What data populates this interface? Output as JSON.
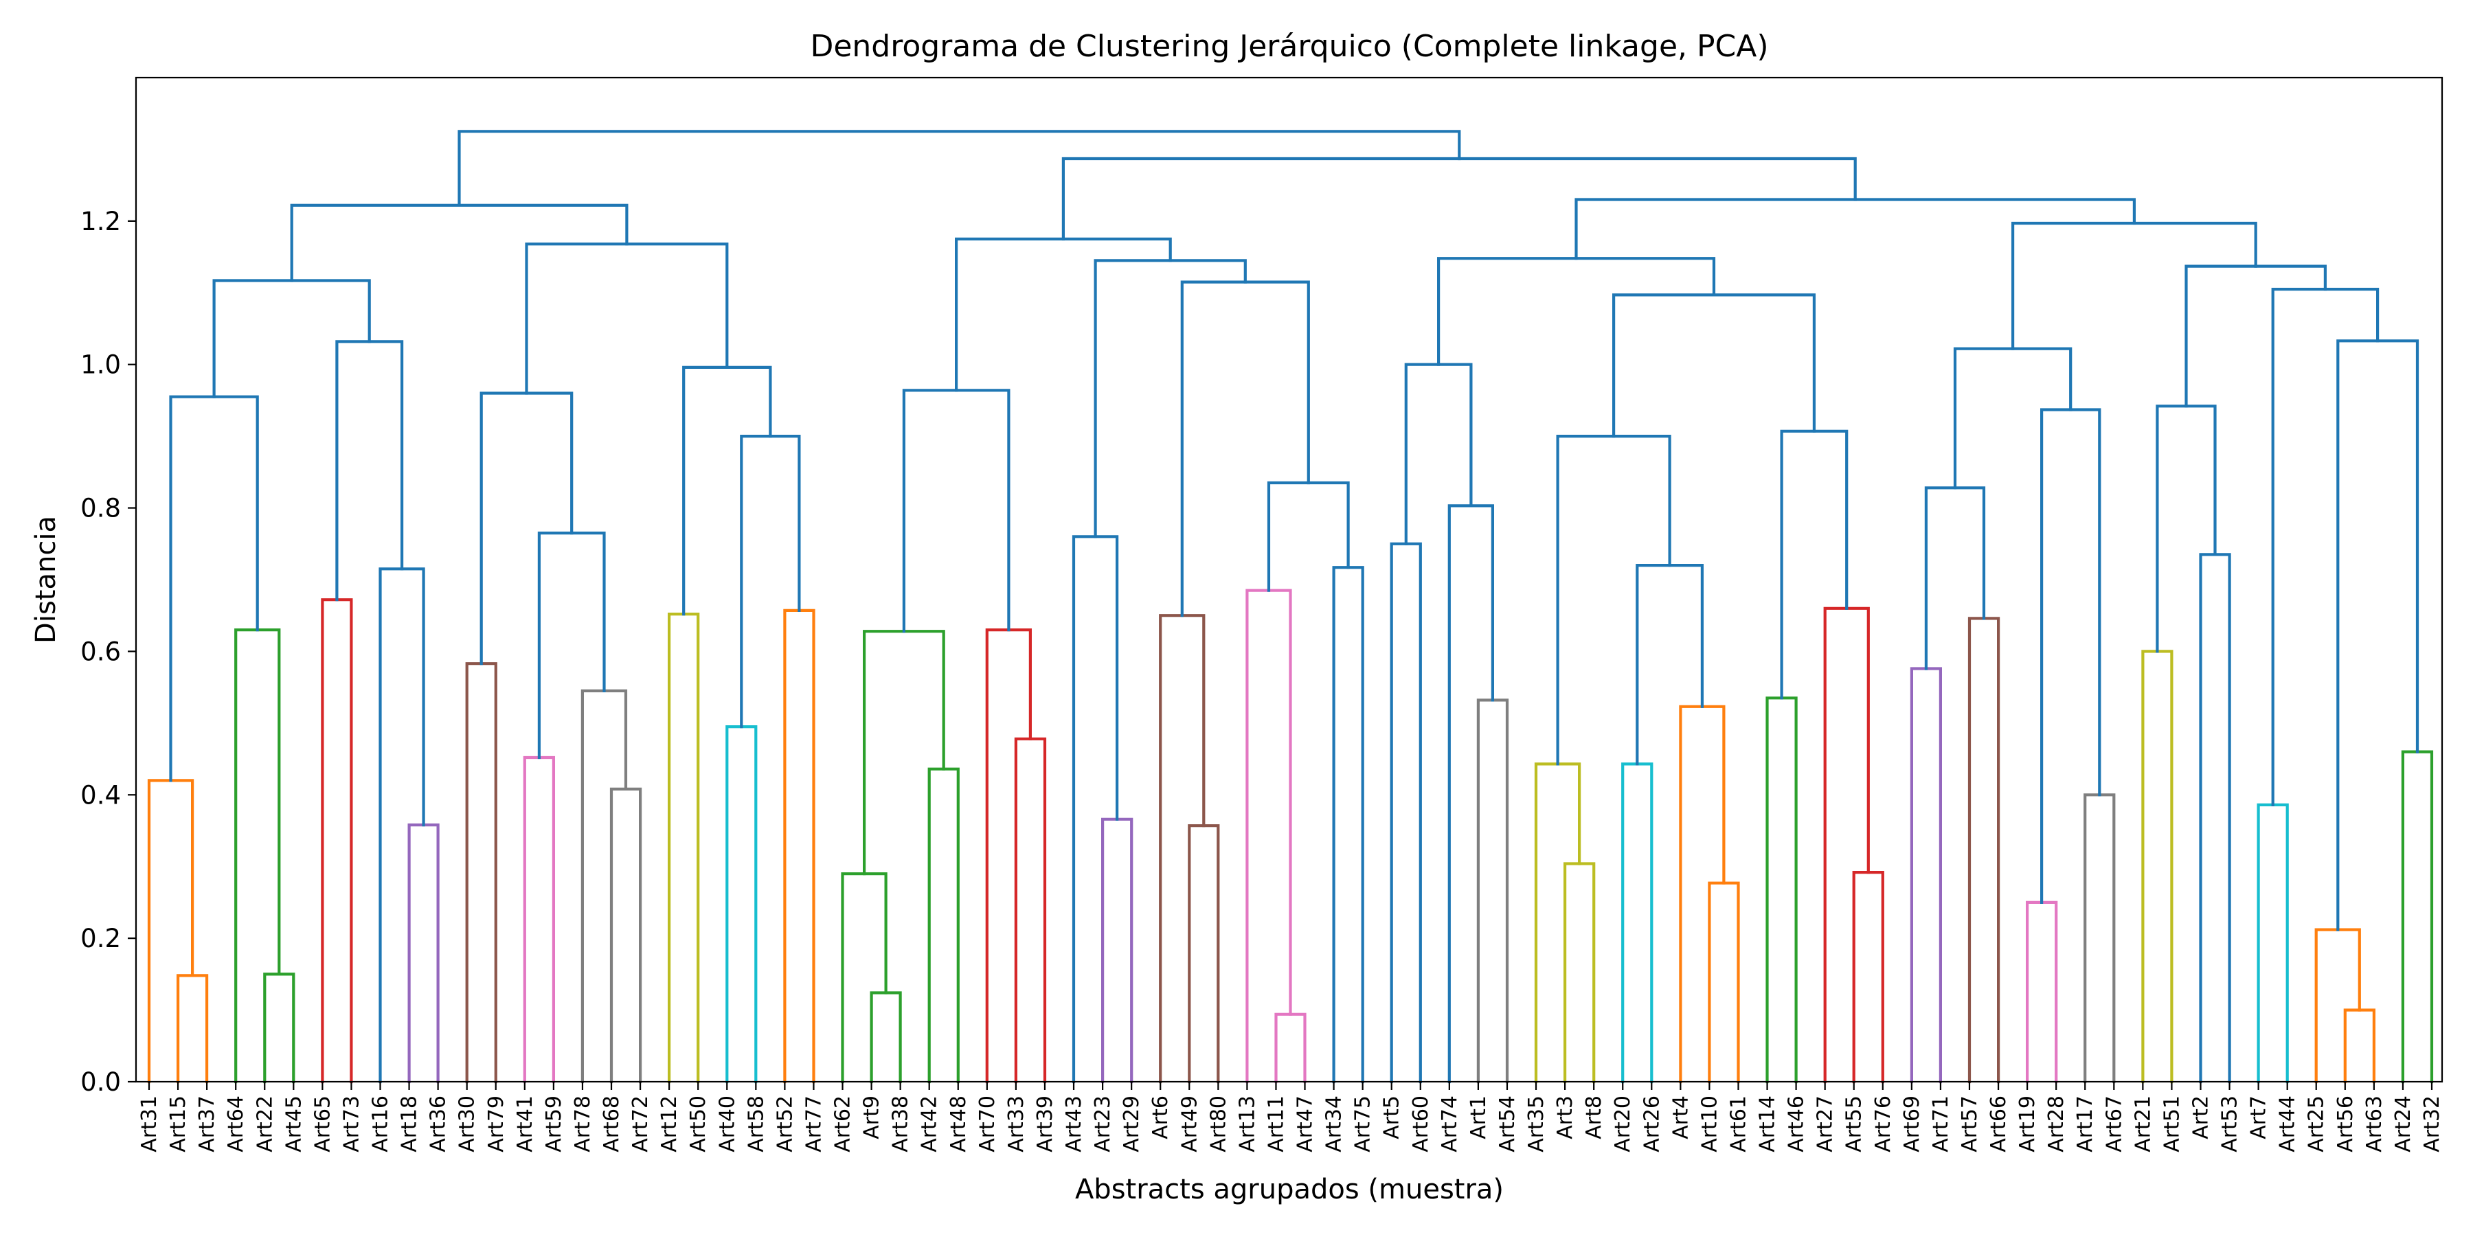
{
  "chart_data": {
    "type": "dendrogram",
    "title": "Dendrograma de Clustering Jerárquico (Complete linkage, PCA)",
    "xlabel": "Abstracts agrupados (muestra)",
    "ylabel": "Distancia",
    "ylim": [
      0.0,
      1.4
    ],
    "yticks": [
      0.0,
      0.2,
      0.4,
      0.6,
      0.8,
      1.0,
      1.2
    ],
    "ytick_labels": [
      "0.0",
      "0.2",
      "0.4",
      "0.6",
      "0.8",
      "1.0",
      "1.2"
    ],
    "grid": false,
    "leaves": [
      "Art31",
      "Art15",
      "Art37",
      "Art64",
      "Art22",
      "Art45",
      "Art65",
      "Art73",
      "Art16",
      "Art18",
      "Art36",
      "Art30",
      "Art79",
      "Art41",
      "Art59",
      "Art78",
      "Art68",
      "Art72",
      "Art12",
      "Art50",
      "Art40",
      "Art58",
      "Art52",
      "Art77",
      "Art62",
      "Art9",
      "Art38",
      "Art42",
      "Art48",
      "Art70",
      "Art33",
      "Art39",
      "Art43",
      "Art23",
      "Art29",
      "Art6",
      "Art49",
      "Art80",
      "Art13",
      "Art11",
      "Art47",
      "Art34",
      "Art75",
      "Art5",
      "Art60",
      "Art74",
      "Art1",
      "Art54",
      "Art35",
      "Art3",
      "Art8",
      "Art20",
      "Art26",
      "Art4",
      "Art10",
      "Art61",
      "Art14",
      "Art46",
      "Art27",
      "Art55",
      "Art76",
      "Art69",
      "Art71",
      "Art57",
      "Art66",
      "Art19",
      "Art28",
      "Art17",
      "Art67",
      "Art21",
      "Art51",
      "Art2",
      "Art53",
      "Art7",
      "Art44",
      "Art25",
      "Art56",
      "Art63",
      "Art24",
      "Art32"
    ],
    "colors": {
      "above_threshold": "#1f77b4",
      "orange": "#ff7f0e",
      "green": "#2ca02c",
      "red": "#d62728",
      "purple": "#9467bd",
      "brown": "#8c564b",
      "pink": "#e377c2",
      "gray": "#7f7f7f",
      "olive": "#bcbd22",
      "cyan": "#17becf"
    },
    "tree": {
      "h": 1.325,
      "c": "C0",
      "ch": [
        {
          "h": 1.222,
          "c": "C0",
          "ch": [
            {
              "h": 1.117,
              "c": "C0",
              "ch": [
                {
                  "h": 0.955,
                  "c": "C0",
                  "ch": [
                    {
                      "h": 0.42,
                      "c": "C1",
                      "ch": [
                        "Art31",
                        {
                          "h": 0.148,
                          "c": "C1",
                          "ch": [
                            "Art15",
                            "Art37"
                          ]
                        }
                      ]
                    },
                    {
                      "h": 0.63,
                      "c": "C2",
                      "ch": [
                        "Art64",
                        {
                          "h": 0.15,
                          "c": "C2",
                          "ch": [
                            "Art22",
                            "Art45"
                          ]
                        }
                      ]
                    }
                  ]
                },
                {
                  "h": 1.032,
                  "c": "C0",
                  "ch": [
                    {
                      "h": 0.672,
                      "c": "C3",
                      "ch": [
                        "Art65",
                        "Art73"
                      ]
                    },
                    {
                      "h": 0.715,
                      "c": "C0",
                      "ch": [
                        "Art16",
                        {
                          "h": 0.358,
                          "c": "C4",
                          "ch": [
                            "Art18",
                            "Art36"
                          ]
                        }
                      ]
                    }
                  ]
                }
              ]
            },
            {
              "h": 1.168,
              "c": "C0",
              "ch": [
                {
                  "h": 0.96,
                  "c": "C0",
                  "ch": [
                    {
                      "h": 0.583,
                      "c": "C5",
                      "ch": [
                        "Art30",
                        "Art79"
                      ]
                    },
                    {
                      "h": 0.765,
                      "c": "C0",
                      "ch": [
                        {
                          "h": 0.452,
                          "c": "C6",
                          "ch": [
                            "Art41",
                            "Art59"
                          ]
                        },
                        {
                          "h": 0.545,
                          "c": "C7",
                          "ch": [
                            "Art78",
                            {
                              "h": 0.408,
                              "c": "C7",
                              "ch": [
                                "Art68",
                                "Art72"
                              ]
                            }
                          ]
                        }
                      ]
                    }
                  ]
                },
                {
                  "h": 0.996,
                  "c": "C0",
                  "ch": [
                    {
                      "h": 0.652,
                      "c": "C8",
                      "ch": [
                        "Art12",
                        "Art50"
                      ]
                    },
                    {
                      "h": 0.9,
                      "c": "C0",
                      "ch": [
                        {
                          "h": 0.495,
                          "c": "C9",
                          "ch": [
                            "Art40",
                            "Art58"
                          ]
                        },
                        {
                          "h": 0.657,
                          "c": "C1",
                          "ch": [
                            "Art52",
                            "Art77"
                          ]
                        }
                      ]
                    }
                  ]
                }
              ]
            }
          ]
        },
        {
          "h": 1.287,
          "c": "C0",
          "ch": [
            {
              "h": 1.175,
              "c": "C0",
              "ch": [
                {
                  "h": 0.964,
                  "c": "C0",
                  "ch": [
                    {
                      "h": 0.628,
                      "c": "C2",
                      "ch": [
                        {
                          "h": 0.29,
                          "c": "C2",
                          "ch": [
                            "Art62",
                            {
                              "h": 0.124,
                              "c": "C2",
                              "ch": [
                                "Art9",
                                "Art38"
                              ]
                            }
                          ]
                        },
                        {
                          "h": 0.436,
                          "c": "C2",
                          "ch": [
                            "Art42",
                            "Art48"
                          ]
                        }
                      ]
                    },
                    {
                      "h": 0.63,
                      "c": "C3",
                      "ch": [
                        "Art70",
                        {
                          "h": 0.478,
                          "c": "C3",
                          "ch": [
                            "Art33",
                            "Art39"
                          ]
                        }
                      ]
                    }
                  ]
                },
                {
                  "h": 1.145,
                  "c": "C0",
                  "ch": [
                    {
                      "h": 0.76,
                      "c": "C0",
                      "ch": [
                        "Art43",
                        {
                          "h": 0.366,
                          "c": "C4",
                          "ch": [
                            "Art23",
                            "Art29"
                          ]
                        }
                      ]
                    },
                    {
                      "h": 1.115,
                      "c": "C0",
                      "ch": [
                        {
                          "h": 0.65,
                          "c": "C5",
                          "ch": [
                            "Art6",
                            {
                              "h": 0.357,
                              "c": "C5",
                              "ch": [
                                "Art49",
                                "Art80"
                              ]
                            }
                          ]
                        },
                        {
                          "h": 0.835,
                          "c": "C0",
                          "ch": [
                            {
                              "h": 0.685,
                              "c": "C6",
                              "ch": [
                                "Art13",
                                {
                                  "h": 0.094,
                                  "c": "C6",
                                  "ch": [
                                    "Art11",
                                    "Art47"
                                  ]
                                }
                              ]
                            },
                            {
                              "h": 0.717,
                              "c": "C0",
                              "ch": [
                                "Art34",
                                "Art75"
                              ]
                            }
                          ]
                        }
                      ]
                    }
                  ]
                }
              ]
            },
            {
              "h": 1.23,
              "c": "C0",
              "ch": [
                {
                  "h": 1.148,
                  "c": "C0",
                  "ch": [
                    {
                      "h": 1.0,
                      "c": "C0",
                      "ch": [
                        {
                          "h": 0.75,
                          "c": "C0",
                          "ch": [
                            "Art5",
                            "Art60"
                          ]
                        },
                        {
                          "h": 0.803,
                          "c": "C0",
                          "ch": [
                            "Art74",
                            {
                              "h": 0.532,
                              "c": "C7",
                              "ch": [
                                "Art1",
                                "Art54"
                              ]
                            }
                          ]
                        }
                      ]
                    },
                    {
                      "h": 1.097,
                      "c": "C0",
                      "ch": [
                        {
                          "h": 0.9,
                          "c": "C0",
                          "ch": [
                            {
                              "h": 0.443,
                              "c": "C8",
                              "ch": [
                                "Art35",
                                {
                                  "h": 0.304,
                                  "c": "C8",
                                  "ch": [
                                    "Art3",
                                    "Art8"
                                  ]
                                }
                              ]
                            },
                            {
                              "h": 0.72,
                              "c": "C0",
                              "ch": [
                                {
                                  "h": 0.443,
                                  "c": "C9",
                                  "ch": [
                                    "Art20",
                                    "Art26"
                                  ]
                                },
                                {
                                  "h": 0.523,
                                  "c": "C1",
                                  "ch": [
                                    "Art4",
                                    {
                                      "h": 0.277,
                                      "c": "C1",
                                      "ch": [
                                        "Art10",
                                        "Art61"
                                      ]
                                    }
                                  ]
                                }
                              ]
                            }
                          ]
                        },
                        {
                          "h": 0.907,
                          "c": "C0",
                          "ch": [
                            {
                              "h": 0.535,
                              "c": "C2",
                              "ch": [
                                "Art14",
                                "Art46"
                              ]
                            },
                            {
                              "h": 0.66,
                              "c": "C3",
                              "ch": [
                                "Art27",
                                {
                                  "h": 0.292,
                                  "c": "C3",
                                  "ch": [
                                    "Art55",
                                    "Art76"
                                  ]
                                }
                              ]
                            }
                          ]
                        }
                      ]
                    }
                  ]
                },
                {
                  "h": 1.197,
                  "c": "C0",
                  "ch": [
                    {
                      "h": 1.022,
                      "c": "C0",
                      "ch": [
                        {
                          "h": 0.828,
                          "c": "C0",
                          "ch": [
                            {
                              "h": 0.576,
                              "c": "C4",
                              "ch": [
                                "Art69",
                                "Art71"
                              ]
                            },
                            {
                              "h": 0.646,
                              "c": "C5",
                              "ch": [
                                "Art57",
                                "Art66"
                              ]
                            }
                          ]
                        },
                        {
                          "h": 0.937,
                          "c": "C0",
                          "ch": [
                            {
                              "h": 0.25,
                              "c": "C6",
                              "ch": [
                                "Art19",
                                "Art28"
                              ]
                            },
                            {
                              "h": 0.4,
                              "c": "C7",
                              "ch": [
                                "Art17",
                                "Art67"
                              ]
                            }
                          ]
                        }
                      ]
                    },
                    {
                      "h": 1.137,
                      "c": "C0",
                      "ch": [
                        {
                          "h": 0.942,
                          "c": "C0",
                          "ch": [
                            {
                              "h": 0.6,
                              "c": "C8",
                              "ch": [
                                "Art21",
                                "Art51"
                              ]
                            },
                            {
                              "h": 0.735,
                              "c": "C0",
                              "ch": [
                                "Art2",
                                "Art53"
                              ]
                            }
                          ]
                        },
                        {
                          "h": 1.105,
                          "c": "C0",
                          "ch": [
                            {
                              "h": 0.386,
                              "c": "C9",
                              "ch": [
                                "Art7",
                                "Art44"
                              ]
                            },
                            {
                              "h": 1.033,
                              "c": "C0",
                              "ch": [
                                {
                                  "h": 0.212,
                                  "c": "C1",
                                  "ch": [
                                    "Art25",
                                    {
                                      "h": 0.1,
                                      "c": "C1",
                                      "ch": [
                                        "Art56",
                                        "Art63"
                                      ]
                                    }
                                  ]
                                },
                                {
                                  "h": 0.46,
                                  "c": "C2",
                                  "ch": [
                                    "Art24",
                                    "Art32"
                                  ]
                                }
                              ]
                            }
                          ]
                        }
                      ]
                    }
                  ]
                }
              ]
            }
          ]
        }
      ]
    }
  }
}
